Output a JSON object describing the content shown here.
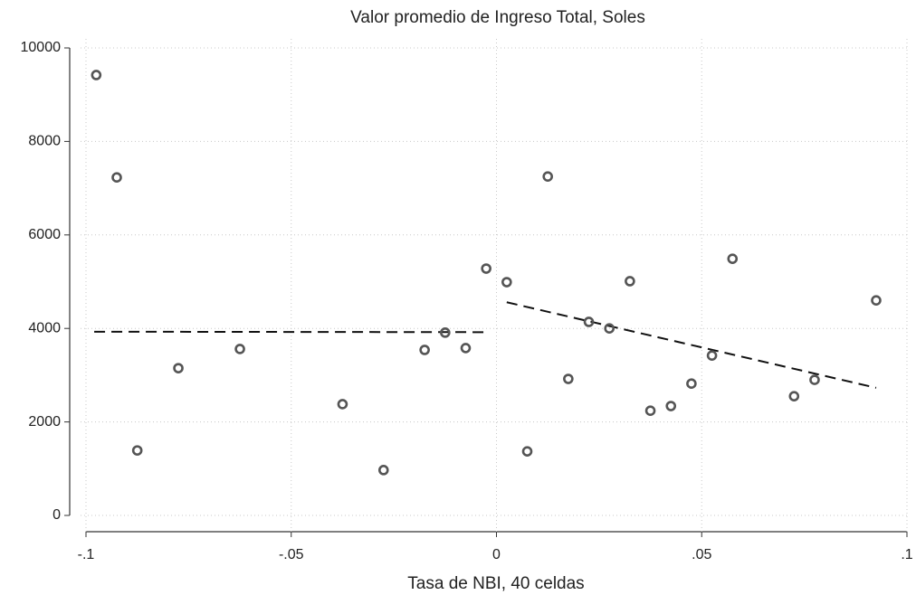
{
  "chart_data": {
    "type": "scatter",
    "title": "Valor promedio de Ingreso Total, Soles",
    "x_label": "Tasa de NBI, 40 celdas",
    "xlim": [
      -0.1,
      0.1
    ],
    "xticks": [
      {
        "value": -0.1,
        "label": "-.1"
      },
      {
        "value": -0.05,
        "label": "-.05"
      },
      {
        "value": 0,
        "label": "0"
      },
      {
        "value": 0.05,
        "label": ".05"
      },
      {
        "value": 0.1,
        "label": ".1"
      }
    ],
    "ylim": [
      0,
      10000
    ],
    "yticks": [
      0,
      2000,
      4000,
      6000,
      8000,
      10000
    ],
    "grid": true,
    "series": [
      {
        "color": "#555555",
        "x": [
          -0.0975,
          -0.0925,
          -0.0875,
          -0.0775,
          -0.0625,
          -0.0375,
          -0.0275,
          -0.0175,
          -0.0125,
          -0.0075,
          -0.0025,
          0.0025,
          0.0075,
          0.0125,
          0.0175,
          0.0225,
          0.0275,
          0.0325,
          0.0375,
          0.0425,
          0.0475,
          0.0525,
          0.0575,
          0.0725,
          0.0775,
          0.0925
        ],
        "values": [
          9420,
          7230,
          1390,
          3150,
          3560,
          2380,
          970,
          3540,
          3910,
          3580,
          5280,
          4990,
          1370,
          7250,
          2920,
          4140,
          4000,
          5010,
          2240,
          2340,
          2820,
          3420,
          5490,
          2550,
          2900,
          4600
        ]
      }
    ],
    "fit_lines": [
      {
        "color": "#111111",
        "dashed": true,
        "x": [
          -0.098,
          -0.0025
        ],
        "values": [
          3930,
          3920
        ]
      },
      {
        "color": "#111111",
        "dashed": true,
        "x": [
          0.0025,
          0.0925
        ],
        "values": [
          4560,
          2730
        ]
      }
    ]
  }
}
